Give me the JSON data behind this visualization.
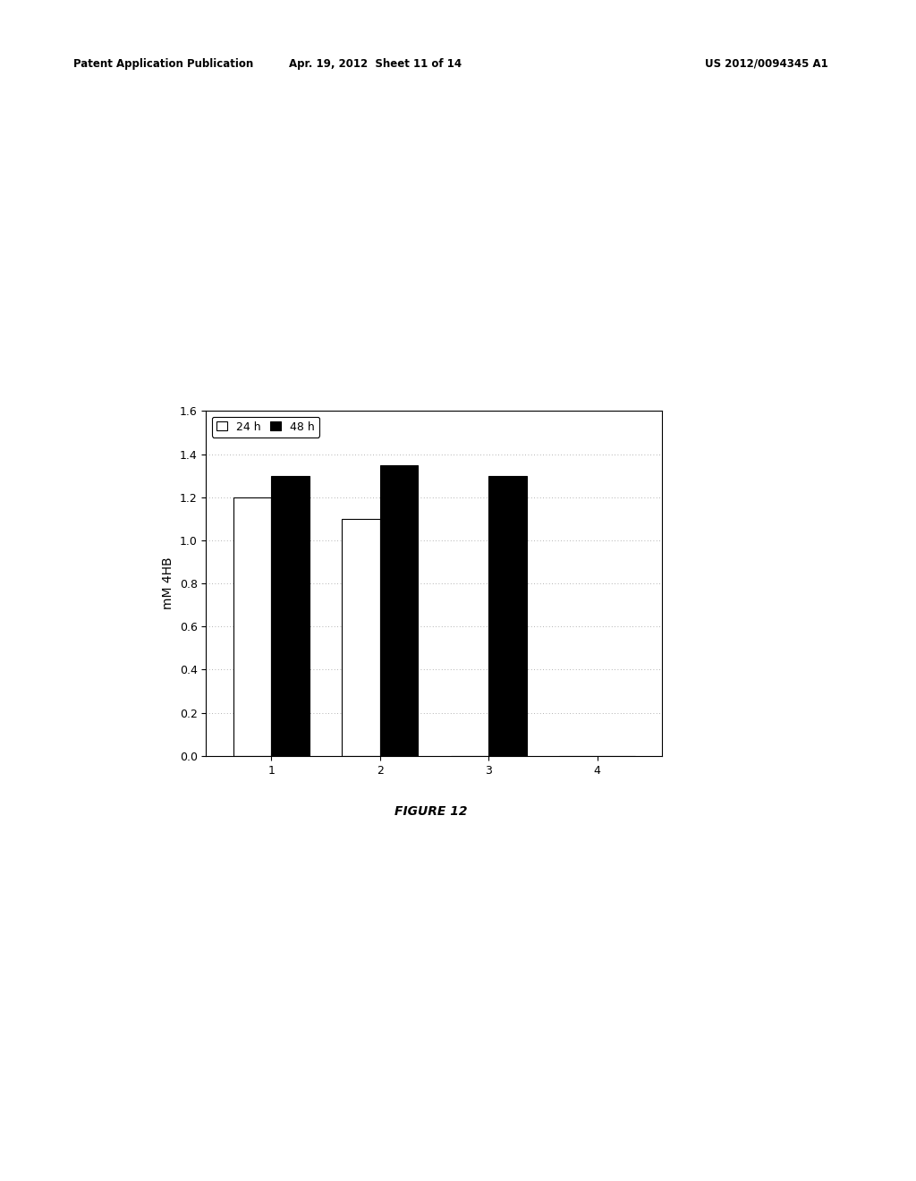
{
  "categories": [
    "1",
    "2",
    "3",
    "4"
  ],
  "series_24h": [
    1.2,
    1.1,
    0.0,
    0.0
  ],
  "series_48h": [
    1.3,
    1.35,
    1.3,
    0.0
  ],
  "bar_color_24h": "#ffffff",
  "bar_color_48h": "#000000",
  "bar_edgecolor": "#000000",
  "ylabel": "mM 4HB",
  "ylim": [
    0.0,
    1.6
  ],
  "yticks": [
    0.0,
    0.2,
    0.4,
    0.6,
    0.8,
    1.0,
    1.2,
    1.4,
    1.6
  ],
  "legend_24h": "24 h",
  "legend_48h": "48 h",
  "figure_caption": "FIGURE 12",
  "header_left": "Patent Application Publication",
  "header_center": "Apr. 19, 2012  Sheet 11 of 14",
  "header_right": "US 2012/0094345 A1",
  "background_color": "#ffffff",
  "grid_color": "#999999",
  "bar_width": 0.35,
  "axis_fontsize": 10,
  "tick_fontsize": 9,
  "caption_fontsize": 10
}
